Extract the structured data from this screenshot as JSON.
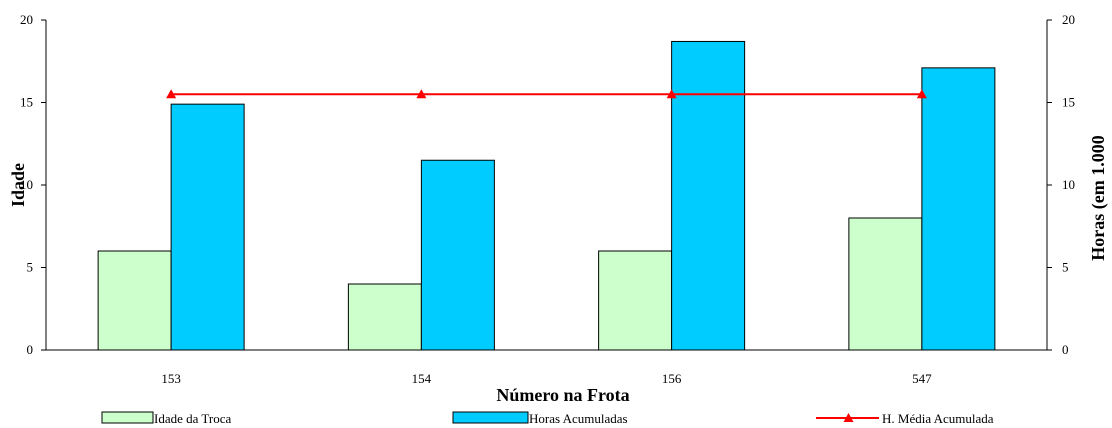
{
  "chart_data": {
    "type": "bar",
    "categories": [
      "153",
      "154",
      "156",
      "547"
    ],
    "series": [
      {
        "name": "Idade da Troca",
        "kind": "bar",
        "axis": "left",
        "color": "#ccffcc",
        "values": [
          6,
          4,
          6,
          8
        ]
      },
      {
        "name": "Horas Acumuladas",
        "kind": "bar",
        "axis": "right",
        "color": "#00ccff",
        "values": [
          14.9,
          11.5,
          18.7,
          17.1
        ]
      },
      {
        "name": "H. Média Acumulada",
        "kind": "line",
        "axis": "right",
        "color": "#ff0000",
        "marker": "triangle",
        "values": [
          15.5,
          15.5,
          15.5,
          15.5
        ]
      }
    ],
    "xlabel": "Número na Frota",
    "ylabel": "Idade",
    "y2label": "Horas (em 1.000",
    "ylim": [
      0,
      20
    ],
    "y2lim": [
      0,
      20
    ],
    "yticks": [
      "0",
      "5",
      "10",
      "15",
      "20"
    ],
    "y2ticks": [
      "0",
      "5",
      "10",
      "15",
      "20"
    ],
    "grid": false,
    "legend_position": "bottom"
  }
}
